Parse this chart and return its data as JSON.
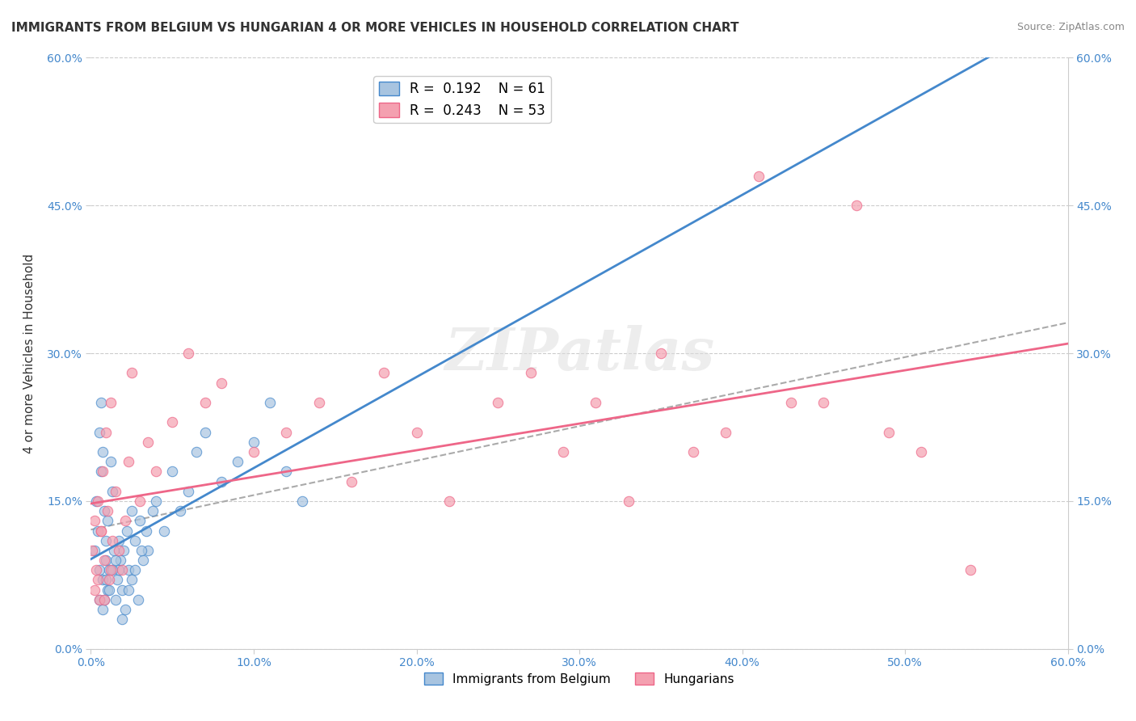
{
  "title": "IMMIGRANTS FROM BELGIUM VS HUNGARIAN 4 OR MORE VEHICLES IN HOUSEHOLD CORRELATION CHART",
  "source": "Source: ZipAtlas.com",
  "xlabel": "",
  "ylabel": "4 or more Vehicles in Household",
  "xlim": [
    0.0,
    0.6
  ],
  "ylim": [
    0.0,
    0.6
  ],
  "xtick_labels": [
    "0.0%",
    "10.0%",
    "20.0%",
    "30.0%",
    "40.0%",
    "50.0%",
    "60.0%"
  ],
  "xtick_values": [
    0.0,
    0.1,
    0.2,
    0.3,
    0.4,
    0.5,
    0.6
  ],
  "ytick_labels": [
    "0.0%",
    "15.0%",
    "30.0%",
    "45.0%",
    "60.0%"
  ],
  "ytick_values": [
    0.0,
    0.15,
    0.3,
    0.45,
    0.6
  ],
  "right_ytick_labels": [
    "60.0%",
    "45.0%",
    "30.0%",
    "15.0%",
    "0.0%"
  ],
  "right_ytick_values": [
    0.6,
    0.45,
    0.3,
    0.15,
    0.0
  ],
  "legend_r1": "R =  0.192",
  "legend_n1": "N = 61",
  "legend_r2": "R =  0.243",
  "legend_n2": "N = 53",
  "color_belgium": "#a8c4e0",
  "color_hungarian": "#f4a0b0",
  "line_color_belgium": "#4488cc",
  "line_color_hungarian": "#ee6688",
  "dashed_line_color": "#aaaaaa",
  "watermark": "ZIPatlas",
  "background_color": "#ffffff",
  "grid_color": "#cccccc",
  "belgium_x": [
    0.002,
    0.003,
    0.004,
    0.005,
    0.005,
    0.006,
    0.006,
    0.007,
    0.007,
    0.008,
    0.008,
    0.009,
    0.009,
    0.01,
    0.01,
    0.011,
    0.012,
    0.013,
    0.014,
    0.015,
    0.016,
    0.017,
    0.018,
    0.019,
    0.02,
    0.022,
    0.023,
    0.025,
    0.027,
    0.03,
    0.032,
    0.035,
    0.04,
    0.045,
    0.05,
    0.055,
    0.06,
    0.065,
    0.07,
    0.08,
    0.09,
    0.1,
    0.11,
    0.12,
    0.13,
    0.005,
    0.007,
    0.009,
    0.011,
    0.013,
    0.015,
    0.017,
    0.019,
    0.021,
    0.023,
    0.025,
    0.027,
    0.029,
    0.031,
    0.034,
    0.038
  ],
  "belgium_y": [
    0.1,
    0.15,
    0.12,
    0.08,
    0.22,
    0.25,
    0.18,
    0.2,
    0.07,
    0.05,
    0.14,
    0.09,
    0.11,
    0.13,
    0.06,
    0.08,
    0.19,
    0.16,
    0.1,
    0.05,
    0.07,
    0.08,
    0.09,
    0.06,
    0.1,
    0.12,
    0.08,
    0.14,
    0.11,
    0.13,
    0.09,
    0.1,
    0.15,
    0.12,
    0.18,
    0.14,
    0.16,
    0.2,
    0.22,
    0.17,
    0.19,
    0.21,
    0.25,
    0.18,
    0.15,
    0.05,
    0.04,
    0.07,
    0.06,
    0.08,
    0.09,
    0.11,
    0.03,
    0.04,
    0.06,
    0.07,
    0.08,
    0.05,
    0.1,
    0.12,
    0.14
  ],
  "hungarian_x": [
    0.001,
    0.002,
    0.003,
    0.004,
    0.005,
    0.006,
    0.007,
    0.008,
    0.009,
    0.01,
    0.011,
    0.012,
    0.013,
    0.015,
    0.017,
    0.019,
    0.021,
    0.023,
    0.025,
    0.03,
    0.035,
    0.04,
    0.05,
    0.06,
    0.07,
    0.08,
    0.1,
    0.12,
    0.14,
    0.16,
    0.18,
    0.2,
    0.22,
    0.25,
    0.27,
    0.29,
    0.31,
    0.33,
    0.35,
    0.37,
    0.39,
    0.41,
    0.43,
    0.45,
    0.47,
    0.49,
    0.51,
    0.54,
    0.002,
    0.004,
    0.006,
    0.008,
    0.012
  ],
  "hungarian_y": [
    0.1,
    0.13,
    0.08,
    0.15,
    0.05,
    0.12,
    0.18,
    0.09,
    0.22,
    0.14,
    0.07,
    0.25,
    0.11,
    0.16,
    0.1,
    0.08,
    0.13,
    0.19,
    0.28,
    0.15,
    0.21,
    0.18,
    0.23,
    0.3,
    0.25,
    0.27,
    0.2,
    0.22,
    0.25,
    0.17,
    0.28,
    0.22,
    0.15,
    0.25,
    0.28,
    0.2,
    0.25,
    0.15,
    0.3,
    0.2,
    0.22,
    0.48,
    0.25,
    0.25,
    0.45,
    0.22,
    0.2,
    0.08,
    0.06,
    0.07,
    0.12,
    0.05,
    0.08
  ]
}
